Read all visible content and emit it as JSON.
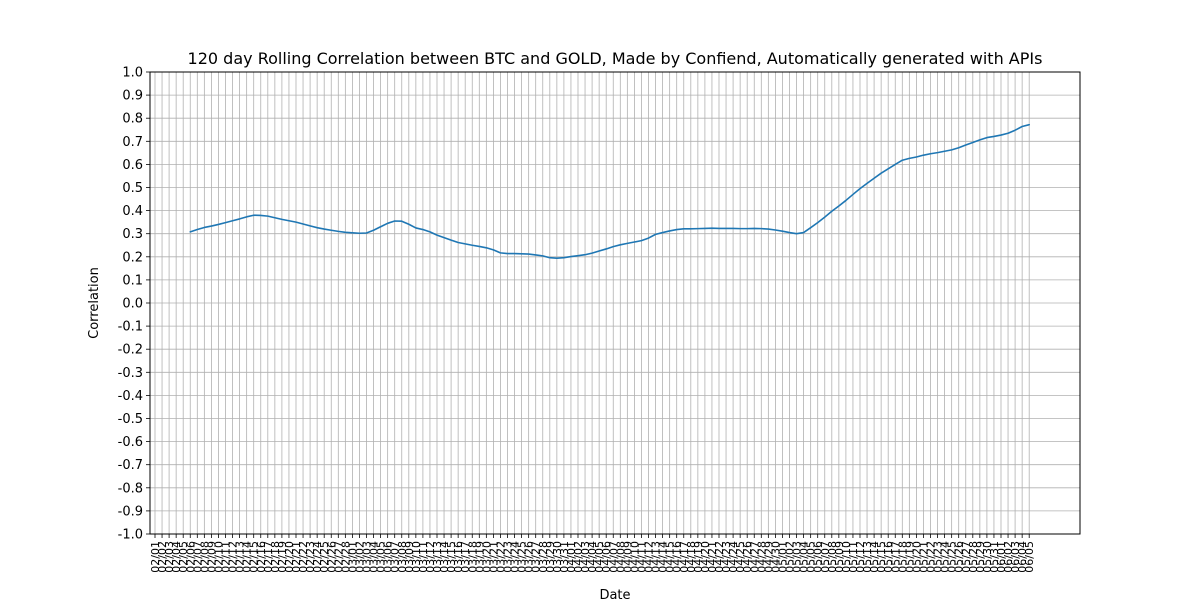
{
  "chart_data": {
    "type": "line",
    "title": "120 day Rolling Correlation between BTC and GOLD, Made by Confiend, Automatically generated with APIs",
    "xlabel": "Date",
    "ylabel": "Correlation",
    "ylim": [
      -1.0,
      1.0
    ],
    "yticks": [
      "-1.0",
      "-0.9",
      "-0.8",
      "-0.7",
      "-0.6",
      "-0.5",
      "-0.4",
      "-0.3",
      "-0.2",
      "-0.1",
      "0.0",
      "0.1",
      "0.2",
      "0.3",
      "0.4",
      "0.5",
      "0.6",
      "0.7",
      "0.8",
      "0.9",
      "1.0"
    ],
    "grid": true,
    "dates": [
      "02/01",
      "02/02",
      "02/03",
      "02/04",
      "02/05",
      "02/06",
      "02/07",
      "02/08",
      "02/09",
      "02/10",
      "02/11",
      "02/12",
      "02/13",
      "02/14",
      "02/15",
      "02/16",
      "02/17",
      "02/18",
      "02/19",
      "02/20",
      "02/21",
      "02/22",
      "02/23",
      "02/24",
      "02/25",
      "02/26",
      "02/27",
      "02/28",
      "03/01",
      "03/02",
      "03/03",
      "03/04",
      "03/05",
      "03/06",
      "03/07",
      "03/08",
      "03/09",
      "03/10",
      "03/11",
      "03/12",
      "03/13",
      "03/14",
      "03/15",
      "03/16",
      "03/17",
      "03/18",
      "03/19",
      "03/20",
      "03/21",
      "03/22",
      "03/23",
      "03/24",
      "03/25",
      "03/26",
      "03/27",
      "03/28",
      "03/29",
      "03/30",
      "03/31",
      "04/01",
      "04/02",
      "04/03",
      "04/04",
      "04/05",
      "04/06",
      "04/07",
      "04/08",
      "04/09",
      "04/10",
      "04/11",
      "04/12",
      "04/13",
      "04/14",
      "04/15",
      "04/16",
      "04/17",
      "04/18",
      "04/19",
      "04/20",
      "04/21",
      "04/22",
      "04/23",
      "04/24",
      "04/25",
      "04/26",
      "04/27",
      "04/28",
      "04/29",
      "04/30",
      "05/01",
      "05/02",
      "05/03",
      "05/04",
      "05/05",
      "05/06",
      "05/07",
      "05/08",
      "05/09",
      "05/10",
      "05/11",
      "05/12",
      "05/13",
      "05/14",
      "05/15",
      "05/16",
      "05/17",
      "05/18",
      "05/19",
      "05/20",
      "05/21",
      "05/22",
      "05/23",
      "05/24",
      "05/25",
      "05/26",
      "05/27",
      "05/28",
      "05/29",
      "05/30",
      "05/31",
      "06/01",
      "06/02",
      "06/03",
      "06/04",
      "06/05"
    ],
    "series": [
      {
        "color": "#1f77b4",
        "x": [
          "02/06",
          "02/07",
          "02/08",
          "02/09",
          "02/10",
          "02/11",
          "02/12",
          "02/13",
          "02/14",
          "02/15",
          "02/16",
          "02/17",
          "02/18",
          "02/19",
          "02/20",
          "02/21",
          "02/22",
          "02/23",
          "02/24",
          "02/25",
          "02/26",
          "02/27",
          "02/28",
          "03/01",
          "03/02",
          "03/03",
          "03/04",
          "03/05",
          "03/06",
          "03/07",
          "03/08",
          "03/09",
          "03/10",
          "03/11",
          "03/12",
          "03/13",
          "03/14",
          "03/15",
          "03/16",
          "03/17",
          "03/18",
          "03/19",
          "03/20",
          "03/21",
          "03/22",
          "03/23",
          "03/24",
          "03/25",
          "03/26",
          "03/27",
          "03/28",
          "03/29",
          "03/30",
          "03/31",
          "04/01",
          "04/02",
          "04/03",
          "04/04",
          "04/05",
          "04/06",
          "04/07",
          "04/08",
          "04/09",
          "04/10",
          "04/11",
          "04/12",
          "04/13",
          "04/14",
          "04/15",
          "04/16",
          "04/17",
          "04/18",
          "04/19",
          "04/20",
          "04/21",
          "04/22",
          "04/23",
          "04/24",
          "04/25",
          "04/26",
          "04/27",
          "04/28",
          "04/29",
          "04/30",
          "05/01",
          "05/02",
          "05/03",
          "05/04",
          "05/05",
          "05/06",
          "05/07",
          "05/08",
          "05/09",
          "05/10",
          "05/11",
          "05/12",
          "05/13",
          "05/14",
          "05/15",
          "05/16",
          "05/17",
          "05/18",
          "05/19",
          "05/20",
          "05/21",
          "05/22",
          "05/23",
          "05/24",
          "05/25",
          "05/26",
          "05/27",
          "05/28",
          "05/29",
          "05/30",
          "05/31",
          "06/01",
          "06/02",
          "06/03",
          "06/04",
          "06/05"
        ],
        "values": [
          0.308,
          0.318,
          0.327,
          0.333,
          0.34,
          0.348,
          0.356,
          0.364,
          0.373,
          0.38,
          0.379,
          0.376,
          0.369,
          0.362,
          0.356,
          0.35,
          0.342,
          0.334,
          0.326,
          0.32,
          0.315,
          0.31,
          0.306,
          0.304,
          0.302,
          0.303,
          0.315,
          0.33,
          0.345,
          0.355,
          0.354,
          0.341,
          0.325,
          0.318,
          0.308,
          0.294,
          0.283,
          0.272,
          0.262,
          0.256,
          0.25,
          0.245,
          0.239,
          0.23,
          0.217,
          0.214,
          0.214,
          0.213,
          0.212,
          0.208,
          0.204,
          0.196,
          0.194,
          0.196,
          0.201,
          0.205,
          0.209,
          0.216,
          0.225,
          0.234,
          0.244,
          0.252,
          0.258,
          0.264,
          0.27,
          0.281,
          0.297,
          0.305,
          0.312,
          0.318,
          0.321,
          0.321,
          0.322,
          0.323,
          0.324,
          0.323,
          0.323,
          0.323,
          0.322,
          0.322,
          0.323,
          0.322,
          0.32,
          0.316,
          0.311,
          0.305,
          0.3,
          0.305,
          0.326,
          0.348,
          0.372,
          0.397,
          0.42,
          0.444,
          0.47,
          0.495,
          0.518,
          0.54,
          0.562,
          0.581,
          0.6,
          0.618,
          0.626,
          0.632,
          0.64,
          0.646,
          0.651,
          0.657,
          0.663,
          0.672,
          0.684,
          0.695,
          0.706,
          0.716,
          0.721,
          0.727,
          0.735,
          0.748,
          0.764,
          0.772
        ]
      }
    ]
  }
}
